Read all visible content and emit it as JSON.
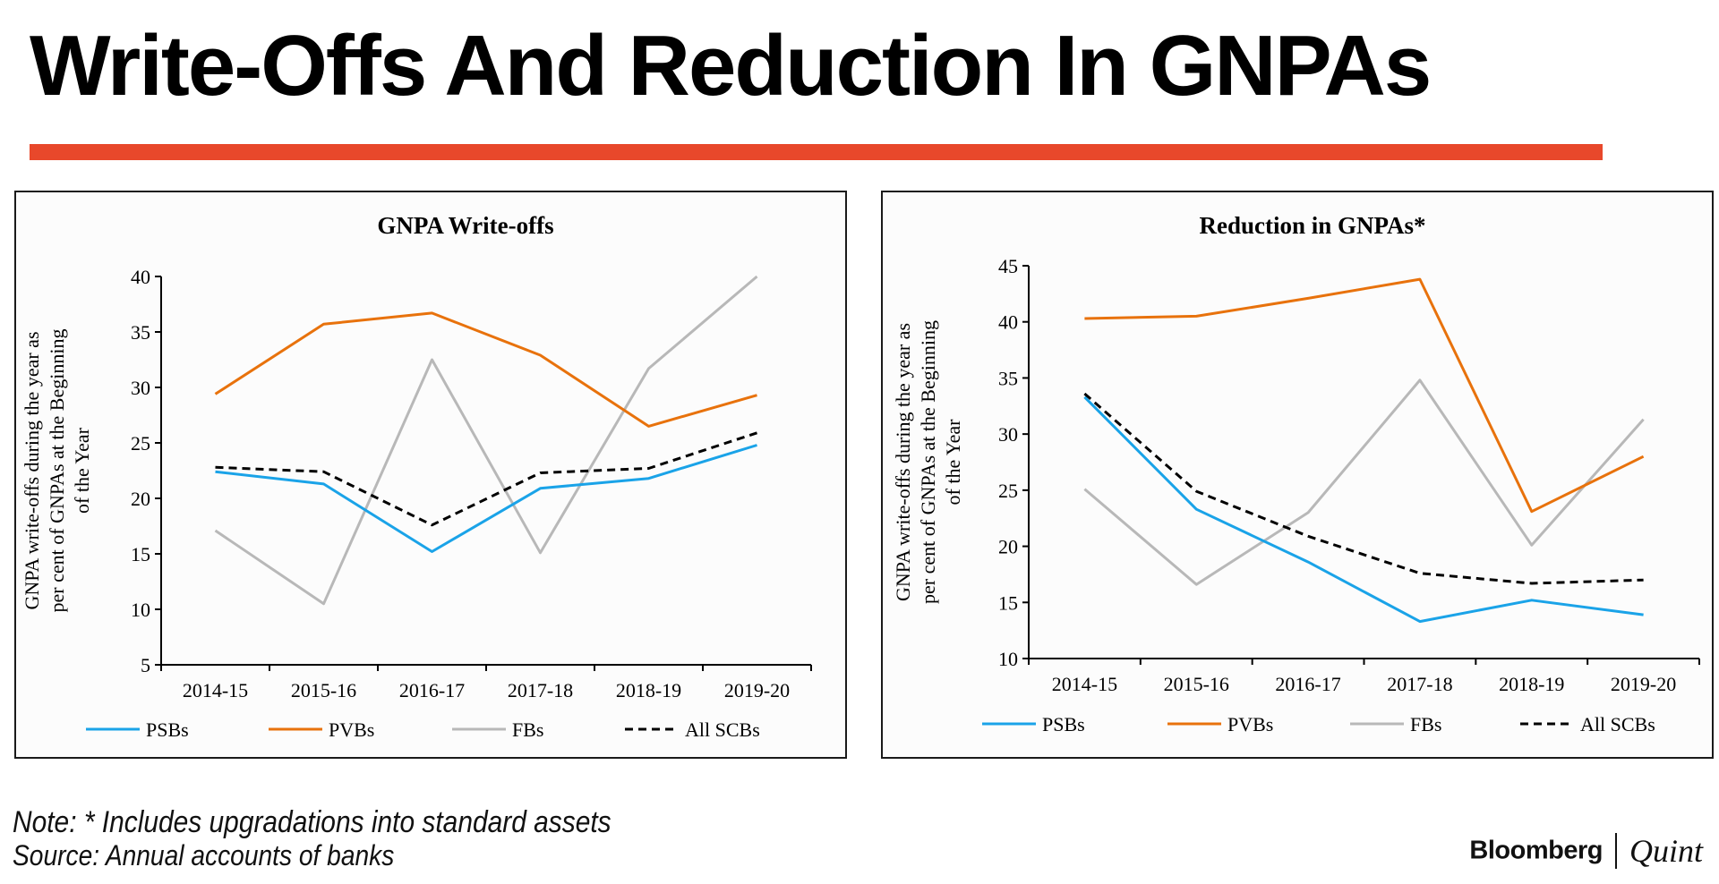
{
  "header": {
    "title": "Write-Offs And Reduction In GNPAs",
    "rule_color": "#e8482b"
  },
  "legend_labels": {
    "psb": "PSBs",
    "pvb": "PVBs",
    "fb": "FBs",
    "all": "All SCBs"
  },
  "colors": {
    "psb": "#1aa3e8",
    "pvb": "#e8720c",
    "fb": "#b8b8b8",
    "all": "#000000"
  },
  "chart_data": [
    {
      "type": "line",
      "title": "GNPA Write-offs",
      "xlabel": "",
      "ylabel": "GNPA write-offs during the year as per cent of GNPAs at the Beginning of the Year",
      "ylabel_lines": [
        "GNPA write-offs during the year as",
        "per cent of GNPAs at the Beginning",
        "of the Year"
      ],
      "categories": [
        "2014-15",
        "2015-16",
        "2016-17",
        "2017-18",
        "2018-19",
        "2019-20"
      ],
      "ylim": [
        5,
        40
      ],
      "yticks": [
        5,
        10,
        15,
        20,
        25,
        30,
        35,
        40
      ],
      "legend_position": "bottom",
      "grid": false,
      "series": [
        {
          "name": "PSBs",
          "key": "psb",
          "values": [
            22.4,
            21.3,
            15.2,
            20.9,
            21.8,
            24.8
          ]
        },
        {
          "name": "PVBs",
          "key": "pvb",
          "values": [
            29.4,
            35.7,
            36.7,
            32.9,
            26.5,
            29.3
          ]
        },
        {
          "name": "FBs",
          "key": "fb",
          "values": [
            17.1,
            10.5,
            32.5,
            15.1,
            31.7,
            40.0
          ]
        },
        {
          "name": "All SCBs",
          "key": "all",
          "dashed": true,
          "values": [
            22.8,
            22.4,
            17.6,
            22.3,
            22.7,
            25.9
          ]
        }
      ]
    },
    {
      "type": "line",
      "title": "Reduction in GNPAs*",
      "xlabel": "",
      "ylabel": "GNPA write-offs during the year as per cent of GNPAs at the Beginning of the Year",
      "ylabel_lines": [
        "GNPA write-offs during the year as",
        "per cent of GNPAs at the Beginning",
        "of the Year"
      ],
      "categories": [
        "2014-15",
        "2015-16",
        "2016-17",
        "2017-18",
        "2018-19",
        "2019-20"
      ],
      "ylim": [
        10,
        45
      ],
      "yticks": [
        10,
        15,
        20,
        25,
        30,
        35,
        40,
        45
      ],
      "legend_position": "bottom",
      "grid": false,
      "series": [
        {
          "name": "PSBs",
          "key": "psb",
          "values": [
            33.3,
            23.3,
            18.6,
            13.3,
            15.2,
            13.9
          ]
        },
        {
          "name": "PVBs",
          "key": "pvb",
          "values": [
            40.3,
            40.5,
            42.1,
            43.8,
            23.1,
            28.0
          ]
        },
        {
          "name": "FBs",
          "key": "fb",
          "values": [
            25.1,
            16.6,
            23.0,
            34.8,
            20.1,
            31.3
          ]
        },
        {
          "name": "All SCBs",
          "key": "all",
          "dashed": true,
          "values": [
            33.6,
            24.9,
            20.9,
            17.6,
            16.7,
            17.0
          ]
        }
      ]
    }
  ],
  "footer": {
    "note": "Note: * Includes upgradations into standard assets",
    "source": "Source: Annual accounts of banks",
    "brand_left": "Bloomberg",
    "brand_right": "Quint"
  }
}
